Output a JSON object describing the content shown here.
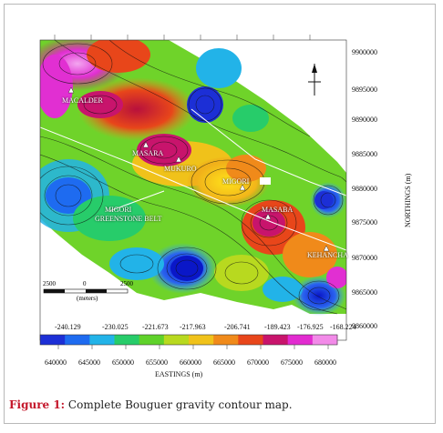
{
  "figure": {
    "caption_label": "Figure 1:",
    "caption_text": " Complete Bouguer gravity contour map."
  },
  "axes": {
    "y_label": "NORTHINGS (m)",
    "x_label": "EASTINGS (m)",
    "y_ticks": [
      "9900000",
      "9895000",
      "9890000",
      "9885000",
      "9880000",
      "9875000",
      "9870000",
      "9865000",
      "9860000"
    ],
    "x_ticks": [
      "640000",
      "645000",
      "650000",
      "655000",
      "660000",
      "665000",
      "670000",
      "675000",
      "680000"
    ]
  },
  "colorbar": {
    "ticks": [
      "-240.129",
      "-230.025",
      "-221.673",
      "-217.963",
      "-206.741",
      "-189.423",
      "-176.925",
      "-168.224"
    ],
    "colors": [
      "#1c2fd6",
      "#1e6bf0",
      "#22b3e8",
      "#27cc6a",
      "#5fd22a",
      "#b8d91f",
      "#f0c21a",
      "#f08a1a",
      "#e8461a",
      "#c8146c",
      "#e22bd0",
      "#f28ae8"
    ]
  },
  "scale_bar": {
    "left": "2500",
    "mid": "0",
    "right": "2500",
    "unit": "(meters)"
  },
  "places": [
    {
      "name": "MACALDER"
    },
    {
      "name": "MASARA"
    },
    {
      "name": "MUKURO"
    },
    {
      "name": "MIGORI"
    },
    {
      "name": "MASABA"
    },
    {
      "name": "KEHANCHA"
    },
    {
      "name": "MIGORI"
    },
    {
      "name": "GREENSTONE BELT"
    }
  ]
}
